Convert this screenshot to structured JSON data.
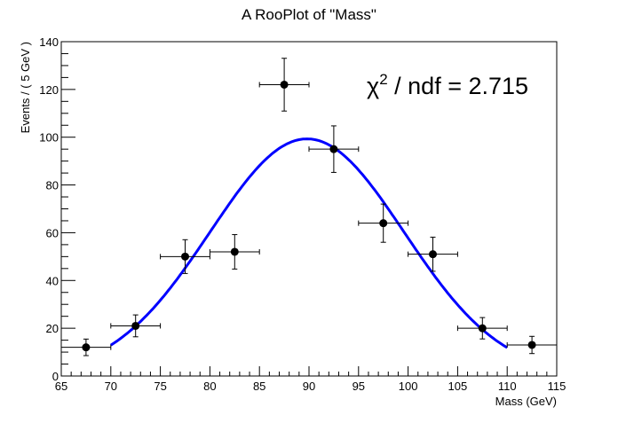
{
  "chart_data": {
    "type": "scatter",
    "title": "A RooPlot of \"Mass\"",
    "xlabel": "Mass (GeV)",
    "ylabel": "Events / ( 5 GeV )",
    "xlim": [
      65,
      115
    ],
    "ylim": [
      0,
      140
    ],
    "x_ticks": [
      "65",
      "70",
      "75",
      "80",
      "85",
      "90",
      "95",
      "100",
      "105",
      "110",
      "115"
    ],
    "y_ticks": [
      "0",
      "20",
      "40",
      "60",
      "80",
      "100",
      "120",
      "140"
    ],
    "bin_width": 5,
    "points": {
      "x": [
        67.5,
        72.5,
        77.5,
        82.5,
        87.5,
        92.5,
        97.5,
        102.5,
        107.5,
        112.5
      ],
      "y": [
        12,
        21,
        50,
        52,
        122,
        95,
        64,
        51,
        20,
        13
      ]
    },
    "fit": {
      "type": "gaussian",
      "amplitude": 99.3,
      "mean": 89.8,
      "sigma": 9.8,
      "range": [
        70,
        110
      ],
      "color": "#0000ff"
    },
    "annotation": {
      "prefix": "χ",
      "sup": "2",
      "text": " / ndf = 2.715"
    },
    "grid": false
  }
}
